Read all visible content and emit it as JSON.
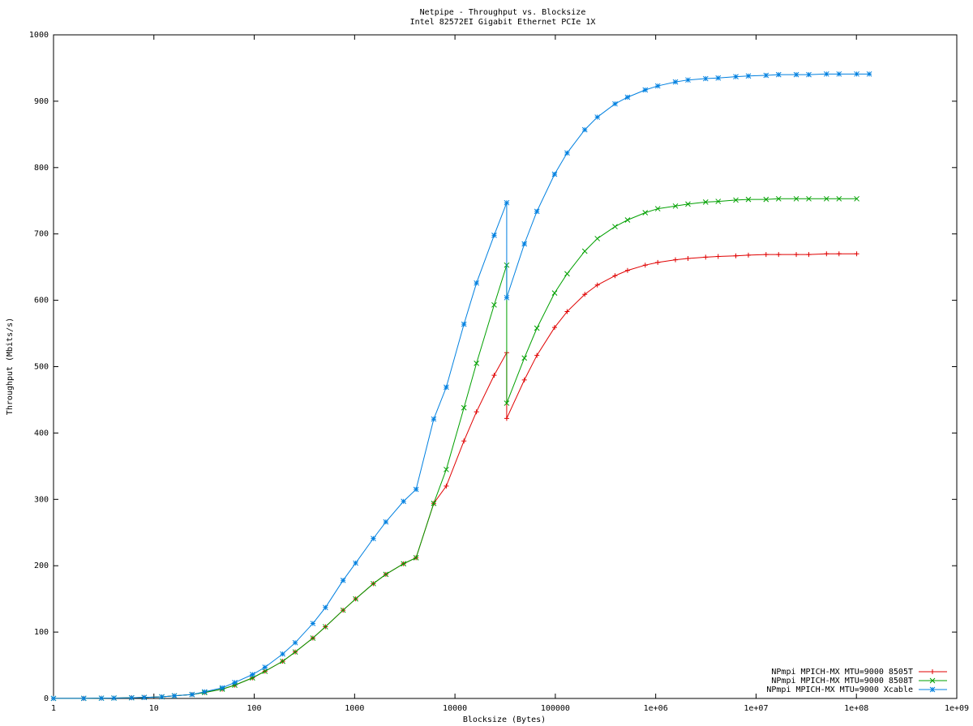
{
  "chart_data": {
    "type": "line",
    "title": "Netpipe - Throughput vs. Blocksize",
    "subtitle": "Intel 82572EI Gigabit Ethernet PCIe 1X",
    "x_label": "Blocksize (Bytes)",
    "y_label": "Throughput (Mbits/s)",
    "x_scale": "log",
    "legend": "lower right",
    "x": [
      1,
      2,
      3,
      4,
      6,
      8,
      12,
      16,
      24,
      32,
      48,
      64,
      96,
      128,
      192,
      256,
      384,
      512,
      768,
      1024,
      1536,
      2048,
      3072,
      4096,
      6144,
      8192,
      12288,
      16384,
      24576,
      32768,
      32768,
      49152,
      65536,
      98304,
      131072,
      196608,
      262144,
      393216,
      524288,
      786432,
      1048576,
      1572864,
      2097152,
      3145728,
      4194304,
      6291456,
      8388608,
      12582912,
      16777216,
      25165824,
      33554432,
      50331648,
      67108864,
      100663296,
      134217728
    ],
    "series": [
      {
        "name": "NPmpi MPICH-MX MTU=9000 8505T",
        "color": "#e00000",
        "marker": "plus",
        "values": [
          0.1,
          0.2,
          0.4,
          0.6,
          1,
          1.5,
          2.4,
          4,
          6,
          9,
          14,
          20,
          31,
          41,
          56,
          70,
          91,
          108,
          133,
          150,
          173,
          187,
          203,
          212,
          294,
          320,
          388,
          432,
          487,
          521,
          422,
          480,
          517,
          559,
          583,
          609,
          623,
          637,
          645,
          653,
          657,
          661,
          663,
          665,
          666,
          667,
          668,
          669,
          669,
          669,
          669,
          670,
          670,
          670,
          null
        ]
      },
      {
        "name": "NPmpi MPICH-MX MTU=9000 8508T",
        "color": "#00a000",
        "marker": "cross",
        "values": [
          0.1,
          0.2,
          0.4,
          0.6,
          1,
          1.5,
          2.4,
          4,
          6,
          9,
          14,
          20,
          31,
          41,
          56,
          70,
          91,
          108,
          133,
          150,
          173,
          187,
          203,
          212,
          294,
          345,
          438,
          505,
          593,
          653,
          445,
          513,
          558,
          611,
          640,
          674,
          693,
          711,
          721,
          732,
          738,
          742,
          745,
          748,
          749,
          751,
          752,
          752,
          753,
          753,
          753,
          753,
          753,
          753,
          null
        ]
      },
      {
        "name": "NPmpi MPICH-MX MTU=9000 Xcable",
        "color": "#0080e0",
        "marker": "star",
        "values": [
          0.1,
          0.2,
          0.4,
          0.6,
          1,
          1.5,
          2.5,
          4,
          6,
          10,
          16,
          24,
          36,
          47,
          67,
          84,
          113,
          137,
          178,
          204,
          241,
          266,
          297,
          315,
          421,
          469,
          564,
          626,
          698,
          747,
          604,
          685,
          734,
          790,
          822,
          857,
          876,
          896,
          906,
          917,
          923,
          929,
          932,
          934,
          935,
          937,
          938,
          939,
          940,
          940,
          940,
          941,
          941,
          941,
          941
        ]
      }
    ],
    "xlim": [
      1,
      1000000000
    ],
    "xticks": [
      1,
      10,
      100,
      1000,
      10000,
      100000,
      {
        "value": 1000000,
        "label": "1e+06"
      },
      {
        "value": 10000000,
        "label": "1e+07"
      },
      {
        "value": 100000000,
        "label": "1e+08"
      },
      {
        "value": 1000000000,
        "label": "1e+09"
      }
    ],
    "ylim": [
      0,
      1000
    ],
    "yticks": [
      0,
      100,
      200,
      300,
      400,
      500,
      600,
      700,
      800,
      900,
      1000
    ]
  }
}
